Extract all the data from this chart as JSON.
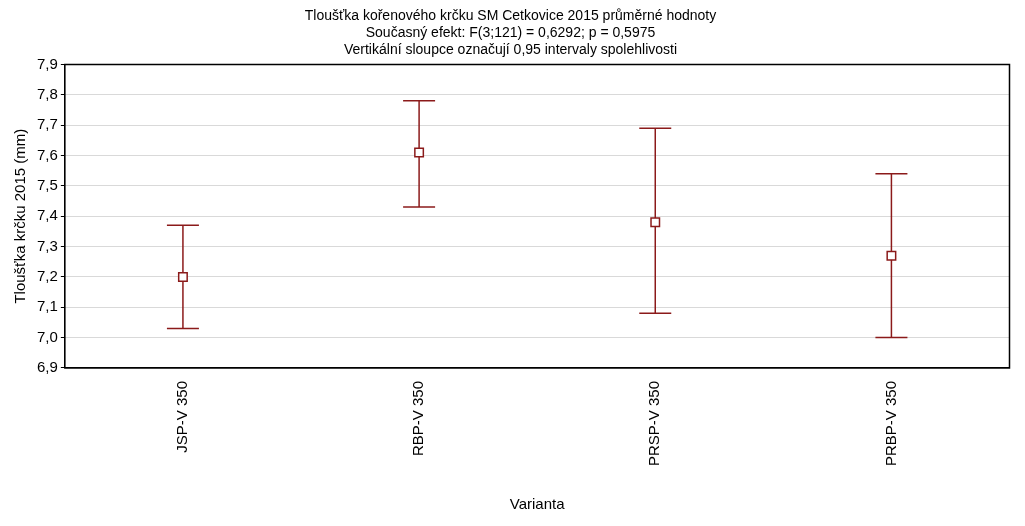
{
  "chart_data": {
    "type": "scatter",
    "title": "Tloušťka kořenového krčku SM Cetkovice 2015 průměrné hodnoty",
    "subtitle": "Současný efekt: F(3;121) = 0,6292; p = 0,5975",
    "annotations": [
      "Vertikální sloupce označují 0,95 intervaly spolehlivosti"
    ],
    "xlabel": "Varianta",
    "ylabel": "Tloušťka krčku 2015 (mm)",
    "categories": [
      "JSP-V 350",
      "RBP-V 350",
      "PRSP-V 350",
      "PRBP-V 350"
    ],
    "color": "#8b1a1a",
    "values": [
      7.2,
      7.61,
      7.38,
      7.27
    ],
    "errors": [
      [
        7.03,
        7.37
      ],
      [
        7.43,
        7.78
      ],
      [
        7.08,
        7.69
      ],
      [
        7.0,
        7.54
      ]
    ],
    "ylim": [
      6.9,
      7.9
    ],
    "yticks": [
      {
        "value": 6.9,
        "label": "6,9"
      },
      {
        "value": 7.0,
        "label": "7,0"
      },
      {
        "value": 7.1,
        "label": "7,1"
      },
      {
        "value": 7.2,
        "label": "7,2"
      },
      {
        "value": 7.3,
        "label": "7,3"
      },
      {
        "value": 7.4,
        "label": "7,4"
      },
      {
        "value": 7.5,
        "label": "7,5"
      },
      {
        "value": 7.6,
        "label": "7,6"
      },
      {
        "value": 7.7,
        "label": "7,7"
      },
      {
        "value": 7.8,
        "label": "7,8"
      },
      {
        "value": 7.9,
        "label": "7,9"
      }
    ],
    "grid": "y",
    "legend": false,
    "marker": "square"
  }
}
